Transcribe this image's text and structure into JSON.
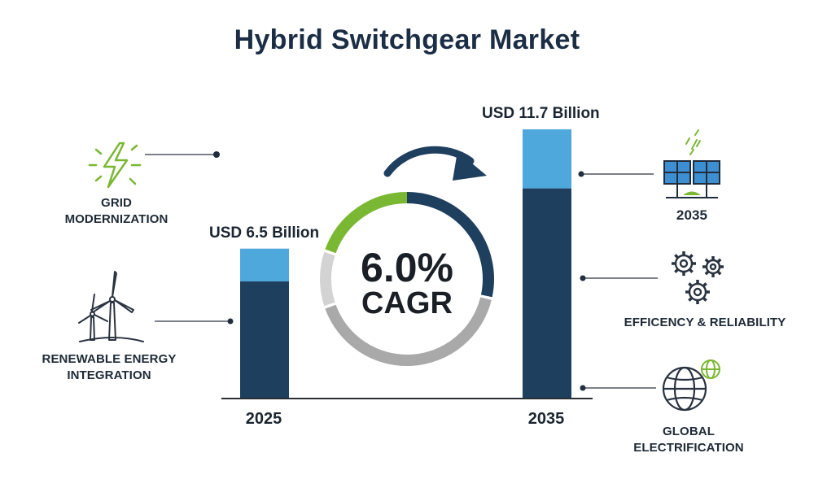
{
  "title": "Hybrid Switchgear Market",
  "chart_data": {
    "type": "bar",
    "unit": "USD Billion",
    "categories": [
      "2025",
      "2035"
    ],
    "values": [
      6.5,
      11.7
    ],
    "value_labels": [
      "USD 6.5 Billion",
      "USD 11.7 Billion"
    ],
    "cagr": {
      "value": "6.0%",
      "label": "CAGR"
    },
    "colors": {
      "top_segment": "#4ea8dc",
      "bottom_segment": "#1f3f5e",
      "ring_green": "#7ab733",
      "ring_navy": "#1f3f5e",
      "ring_gray": "#a9a9a9",
      "ring_lightgray": "#d3d3d3"
    }
  },
  "drivers": {
    "left": [
      {
        "label_lines": [
          "GRID",
          "MODERNIZATION"
        ],
        "icon": "lightning-bolt-icon"
      },
      {
        "label_lines": [
          "RENEWABLE ENERGY INTEGRATION"
        ],
        "icon": "wind-turbine-icon"
      }
    ],
    "right": [
      {
        "label_lines": [
          "2035"
        ],
        "icon": "solar-panel-icon"
      },
      {
        "label_lines": [
          "EFFICENCY & RELIABILITY"
        ],
        "icon": "gears-icon"
      },
      {
        "label_lines": [
          "GLOBAL",
          "ELECTRIFICATION"
        ],
        "icon": "globe-icon"
      }
    ]
  }
}
